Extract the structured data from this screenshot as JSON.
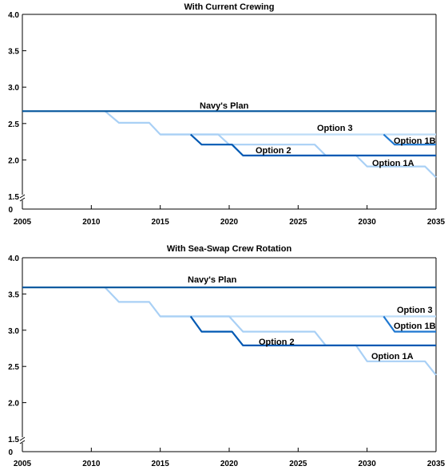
{
  "chart_data": [
    {
      "type": "line",
      "title": "With Current Crewing",
      "xlabel": "",
      "ylabel": "",
      "xlim": [
        2005,
        2035
      ],
      "ylim": [
        1.5,
        4.0
      ],
      "y_axis_break": true,
      "y_zero_label": "0",
      "x_ticks": [
        "2005",
        "2010",
        "2015",
        "2020",
        "2025",
        "2030",
        "2035"
      ],
      "y_ticks": [
        "1.5",
        "2.0",
        "2.5",
        "3.0",
        "3.5",
        "4.0"
      ],
      "grid": false,
      "series": [
        {
          "name": "Navy's Plan",
          "color": "#00539b",
          "x": [
            2005,
            2035
          ],
          "y": [
            2.67,
            2.67
          ]
        },
        {
          "name": "Option 1A",
          "color": "#a9d0f5",
          "x": [
            2011,
            2012,
            2014.2,
            2015,
            2019.2,
            2020,
            2026.2,
            2027,
            2029.2,
            2030,
            2034.2,
            2035
          ],
          "y": [
            2.67,
            2.51,
            2.51,
            2.35,
            2.35,
            2.21,
            2.21,
            2.06,
            2.06,
            1.91,
            1.91,
            1.76
          ]
        },
        {
          "name": "Option 1B",
          "color": "#1f78d1",
          "x": [
            2031.2,
            2032,
            2035
          ],
          "y": [
            2.35,
            2.21,
            2.21
          ]
        },
        {
          "name": "Option 2",
          "color": "#0059b3",
          "x": [
            2017.2,
            2018,
            2020.2,
            2021,
            2035
          ],
          "y": [
            2.35,
            2.21,
            2.21,
            2.06,
            2.06
          ]
        },
        {
          "name": "Option 3",
          "color": "#bcdcf7",
          "x": [
            2015,
            2035
          ],
          "y": [
            2.35,
            2.35
          ]
        }
      ],
      "annotations": [
        "Navy's Plan",
        "Option 3",
        "Option 1B",
        "Option 2",
        "Option 1A"
      ]
    },
    {
      "type": "line",
      "title": "With Sea-Swap Crew Rotation",
      "xlabel": "",
      "ylabel": "",
      "xlim": [
        2005,
        2035
      ],
      "ylim": [
        1.5,
        4.0
      ],
      "y_axis_break": true,
      "y_zero_label": "0",
      "x_ticks": [
        "2005",
        "2010",
        "2015",
        "2020",
        "2025",
        "2030",
        "2035"
      ],
      "y_ticks": [
        "1.5",
        "2.0",
        "2.5",
        "3.0",
        "3.5",
        "4.0"
      ],
      "grid": false,
      "series": [
        {
          "name": "Navy's Plan",
          "color": "#00539b",
          "x": [
            2005,
            2035
          ],
          "y": [
            3.59,
            3.59
          ]
        },
        {
          "name": "Option 1A",
          "color": "#a9d0f5",
          "x": [
            2011,
            2012,
            2014.2,
            2015,
            2020,
            2021,
            2026.2,
            2027,
            2029.2,
            2030,
            2034.2,
            2035
          ],
          "y": [
            3.59,
            3.39,
            3.39,
            3.19,
            3.19,
            2.98,
            2.98,
            2.79,
            2.79,
            2.57,
            2.57,
            2.38
          ]
        },
        {
          "name": "Option 1B",
          "color": "#1f78d1",
          "x": [
            2031.2,
            2032,
            2035
          ],
          "y": [
            3.19,
            2.98,
            2.98
          ]
        },
        {
          "name": "Option 2",
          "color": "#0059b3",
          "x": [
            2017.2,
            2018,
            2020.2,
            2021,
            2035
          ],
          "y": [
            3.19,
            2.98,
            2.98,
            2.79,
            2.79
          ]
        },
        {
          "name": "Option 3",
          "color": "#bcdcf7",
          "x": [
            2015,
            2035
          ],
          "y": [
            3.19,
            3.19
          ]
        }
      ],
      "annotations": [
        "Navy's Plan",
        "Option 3",
        "Option 1B",
        "Option 2",
        "Option 1A"
      ]
    }
  ]
}
